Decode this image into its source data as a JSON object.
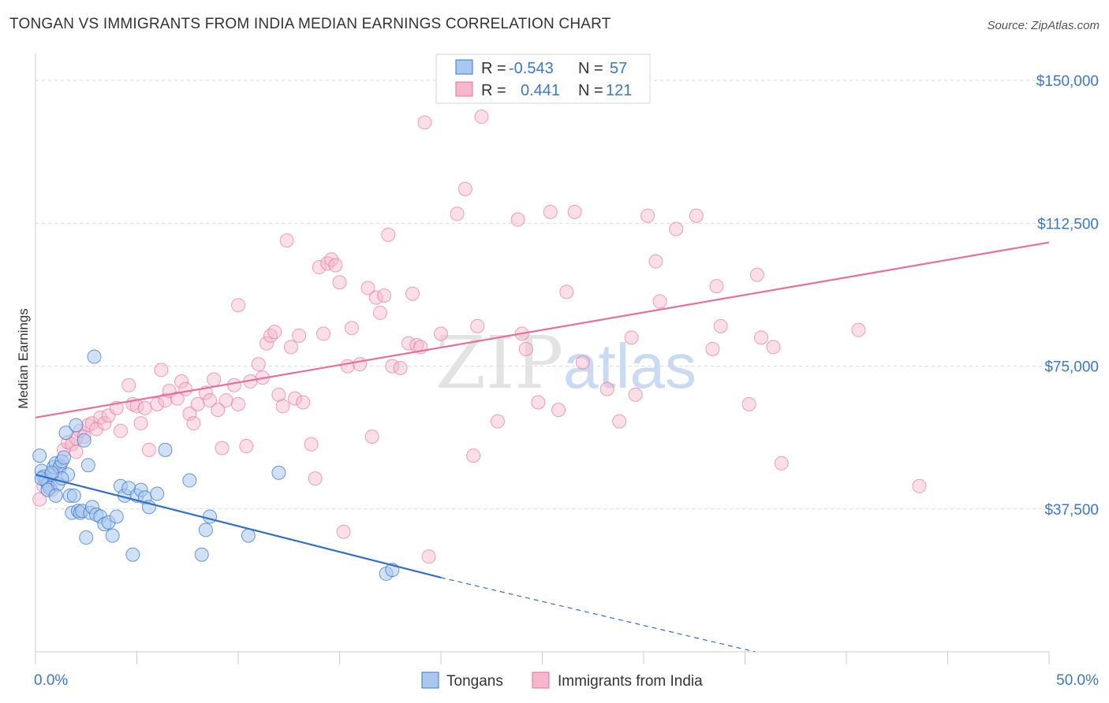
{
  "title": "TONGAN VS IMMIGRANTS FROM INDIA MEDIAN EARNINGS CORRELATION CHART",
  "source": "Source: ZipAtlas.com",
  "colors": {
    "blue": "#3b78c9",
    "blue_fill": "#a9c8ef",
    "blue_line": "#2f6fca",
    "pink": "#e86f9a",
    "pink_fill": "#f4b7cb",
    "grid": "#d9d9d9",
    "axis": "#cccccc"
  },
  "legend": {
    "rows": [
      {
        "series": "Tongans",
        "r_label": "R =",
        "r_value": "-0.543",
        "n_label": "N =",
        "n_value": "57"
      },
      {
        "series": "Immigrants from India",
        "r_label": "R =",
        "r_value": "0.441",
        "n_label": "N =",
        "n_value": "121"
      }
    ]
  },
  "watermark": {
    "zip": "ZIP",
    "atlas": "atlas"
  },
  "chart_data": {
    "type": "scatter",
    "title": "TONGAN VS IMMIGRANTS FROM INDIA MEDIAN EARNINGS CORRELATION CHART",
    "xlabel": "",
    "ylabel": "Median Earnings",
    "xlim": [
      0,
      50
    ],
    "ylim": [
      0,
      155000
    ],
    "x_tick_labels": [
      "0.0%",
      "50.0%"
    ],
    "y_ticks": [
      37500,
      75000,
      112500,
      150000
    ],
    "y_tick_labels": [
      "$37,500",
      "$75,000",
      "$112,500",
      "$150,000"
    ],
    "grid": true,
    "legend_position": "top-center",
    "series": [
      {
        "name": "Tongans",
        "r": -0.543,
        "n": 57,
        "trend": {
          "x0": 0,
          "y0": 46500,
          "x1": 20,
          "y1": 19500,
          "dashed_to_x": 35.5,
          "dashed_to_y": 0
        },
        "points": [
          [
            0.2,
            51500
          ],
          [
            0.3,
            47500
          ],
          [
            0.4,
            46000
          ],
          [
            0.5,
            45000
          ],
          [
            0.6,
            44000
          ],
          [
            0.7,
            43000
          ],
          [
            0.8,
            46500
          ],
          [
            0.9,
            48500
          ],
          [
            1.0,
            49500
          ],
          [
            1.1,
            44000
          ],
          [
            1.2,
            48500
          ],
          [
            1.3,
            50000
          ],
          [
            1.4,
            51000
          ],
          [
            1.5,
            57500
          ],
          [
            1.6,
            46500
          ],
          [
            1.7,
            41000
          ],
          [
            1.8,
            36500
          ],
          [
            1.9,
            41000
          ],
          [
            2.0,
            59500
          ],
          [
            2.1,
            37000
          ],
          [
            2.2,
            36500
          ],
          [
            2.3,
            37000
          ],
          [
            2.4,
            55500
          ],
          [
            2.5,
            30000
          ],
          [
            2.6,
            49000
          ],
          [
            2.7,
            36500
          ],
          [
            2.8,
            38000
          ],
          [
            3.0,
            36000
          ],
          [
            3.2,
            35500
          ],
          [
            3.4,
            33500
          ],
          [
            3.6,
            34000
          ],
          [
            3.8,
            30500
          ],
          [
            4.0,
            35500
          ],
          [
            4.2,
            43500
          ],
          [
            4.4,
            41000
          ],
          [
            4.6,
            43000
          ],
          [
            4.8,
            25500
          ],
          [
            5.0,
            41000
          ],
          [
            5.2,
            42500
          ],
          [
            5.4,
            40500
          ],
          [
            5.6,
            38000
          ],
          [
            6.0,
            41500
          ],
          [
            6.4,
            53000
          ],
          [
            7.6,
            45000
          ],
          [
            8.2,
            25500
          ],
          [
            8.4,
            32000
          ],
          [
            8.6,
            35500
          ],
          [
            10.5,
            30500
          ],
          [
            12.0,
            47000
          ],
          [
            17.3,
            20500
          ],
          [
            17.6,
            21500
          ],
          [
            0.3,
            45500
          ],
          [
            0.6,
            42500
          ],
          [
            1.0,
            41000
          ],
          [
            1.3,
            45500
          ],
          [
            0.8,
            47000
          ],
          [
            2.9,
            77500
          ]
        ]
      },
      {
        "name": "Immigrants from India",
        "r": 0.441,
        "n": 121,
        "trend": {
          "x0": 0,
          "y0": 61500,
          "x1": 50,
          "y1": 107500
        },
        "points": [
          [
            0.2,
            40000
          ],
          [
            0.4,
            43500
          ],
          [
            0.6,
            45000
          ],
          [
            0.8,
            42500
          ],
          [
            1.0,
            47500
          ],
          [
            1.2,
            49000
          ],
          [
            1.4,
            53000
          ],
          [
            1.6,
            55000
          ],
          [
            1.8,
            54500
          ],
          [
            2.0,
            56000
          ],
          [
            2.2,
            58000
          ],
          [
            2.4,
            56500
          ],
          [
            2.6,
            59500
          ],
          [
            2.8,
            60000
          ],
          [
            3.0,
            58500
          ],
          [
            3.2,
            61500
          ],
          [
            3.4,
            60000
          ],
          [
            3.6,
            62000
          ],
          [
            4.0,
            64000
          ],
          [
            4.2,
            58000
          ],
          [
            4.6,
            70000
          ],
          [
            4.8,
            65000
          ],
          [
            5.0,
            64500
          ],
          [
            5.2,
            60000
          ],
          [
            5.4,
            64000
          ],
          [
            5.6,
            53000
          ],
          [
            6.0,
            65000
          ],
          [
            6.2,
            74000
          ],
          [
            6.4,
            66000
          ],
          [
            6.6,
            68500
          ],
          [
            7.0,
            66500
          ],
          [
            7.2,
            71000
          ],
          [
            7.4,
            69000
          ],
          [
            7.6,
            62500
          ],
          [
            7.8,
            60000
          ],
          [
            8.0,
            65000
          ],
          [
            8.4,
            68000
          ],
          [
            8.6,
            66000
          ],
          [
            8.8,
            71500
          ],
          [
            9.2,
            53500
          ],
          [
            9.4,
            66000
          ],
          [
            9.8,
            70000
          ],
          [
            10.0,
            91000
          ],
          [
            10.4,
            54000
          ],
          [
            10.6,
            71000
          ],
          [
            11.0,
            75500
          ],
          [
            11.2,
            72000
          ],
          [
            11.4,
            81000
          ],
          [
            11.6,
            83000
          ],
          [
            11.8,
            84000
          ],
          [
            12.0,
            67500
          ],
          [
            12.2,
            64500
          ],
          [
            12.4,
            108000
          ],
          [
            12.6,
            80000
          ],
          [
            12.8,
            66500
          ],
          [
            13.0,
            83000
          ],
          [
            13.2,
            65500
          ],
          [
            13.6,
            54500
          ],
          [
            13.8,
            45500
          ],
          [
            14.0,
            101000
          ],
          [
            14.2,
            83500
          ],
          [
            14.4,
            102000
          ],
          [
            14.6,
            103000
          ],
          [
            14.8,
            101500
          ],
          [
            15.0,
            97000
          ],
          [
            15.2,
            31500
          ],
          [
            15.4,
            75000
          ],
          [
            15.6,
            85000
          ],
          [
            16.0,
            75500
          ],
          [
            16.4,
            95500
          ],
          [
            16.6,
            56500
          ],
          [
            16.8,
            93000
          ],
          [
            17.0,
            89000
          ],
          [
            17.2,
            93500
          ],
          [
            17.4,
            109500
          ],
          [
            17.6,
            75000
          ],
          [
            18.0,
            74500
          ],
          [
            18.4,
            81000
          ],
          [
            18.6,
            94000
          ],
          [
            18.8,
            80500
          ],
          [
            19.0,
            80000
          ],
          [
            19.2,
            139000
          ],
          [
            19.4,
            25000
          ],
          [
            20.0,
            83500
          ],
          [
            20.8,
            115000
          ],
          [
            21.2,
            121500
          ],
          [
            21.6,
            51500
          ],
          [
            21.8,
            85500
          ],
          [
            22.0,
            140500
          ],
          [
            22.8,
            60500
          ],
          [
            23.8,
            113500
          ],
          [
            24.0,
            83500
          ],
          [
            24.2,
            79500
          ],
          [
            24.8,
            65500
          ],
          [
            25.4,
            115500
          ],
          [
            25.8,
            63500
          ],
          [
            26.2,
            94500
          ],
          [
            26.6,
            115500
          ],
          [
            27.0,
            76000
          ],
          [
            28.2,
            69000
          ],
          [
            28.8,
            60500
          ],
          [
            29.4,
            82500
          ],
          [
            29.6,
            67500
          ],
          [
            30.2,
            114500
          ],
          [
            30.6,
            102500
          ],
          [
            30.8,
            92000
          ],
          [
            31.6,
            111000
          ],
          [
            32.6,
            114500
          ],
          [
            33.4,
            79500
          ],
          [
            33.6,
            96000
          ],
          [
            33.8,
            85500
          ],
          [
            35.2,
            65000
          ],
          [
            35.6,
            99000
          ],
          [
            35.8,
            82500
          ],
          [
            36.4,
            80000
          ],
          [
            36.8,
            49500
          ],
          [
            40.6,
            84500
          ],
          [
            43.6,
            43500
          ],
          [
            10.0,
            65000
          ],
          [
            9.0,
            63500
          ],
          [
            2.0,
            52500
          ]
        ]
      }
    ]
  }
}
